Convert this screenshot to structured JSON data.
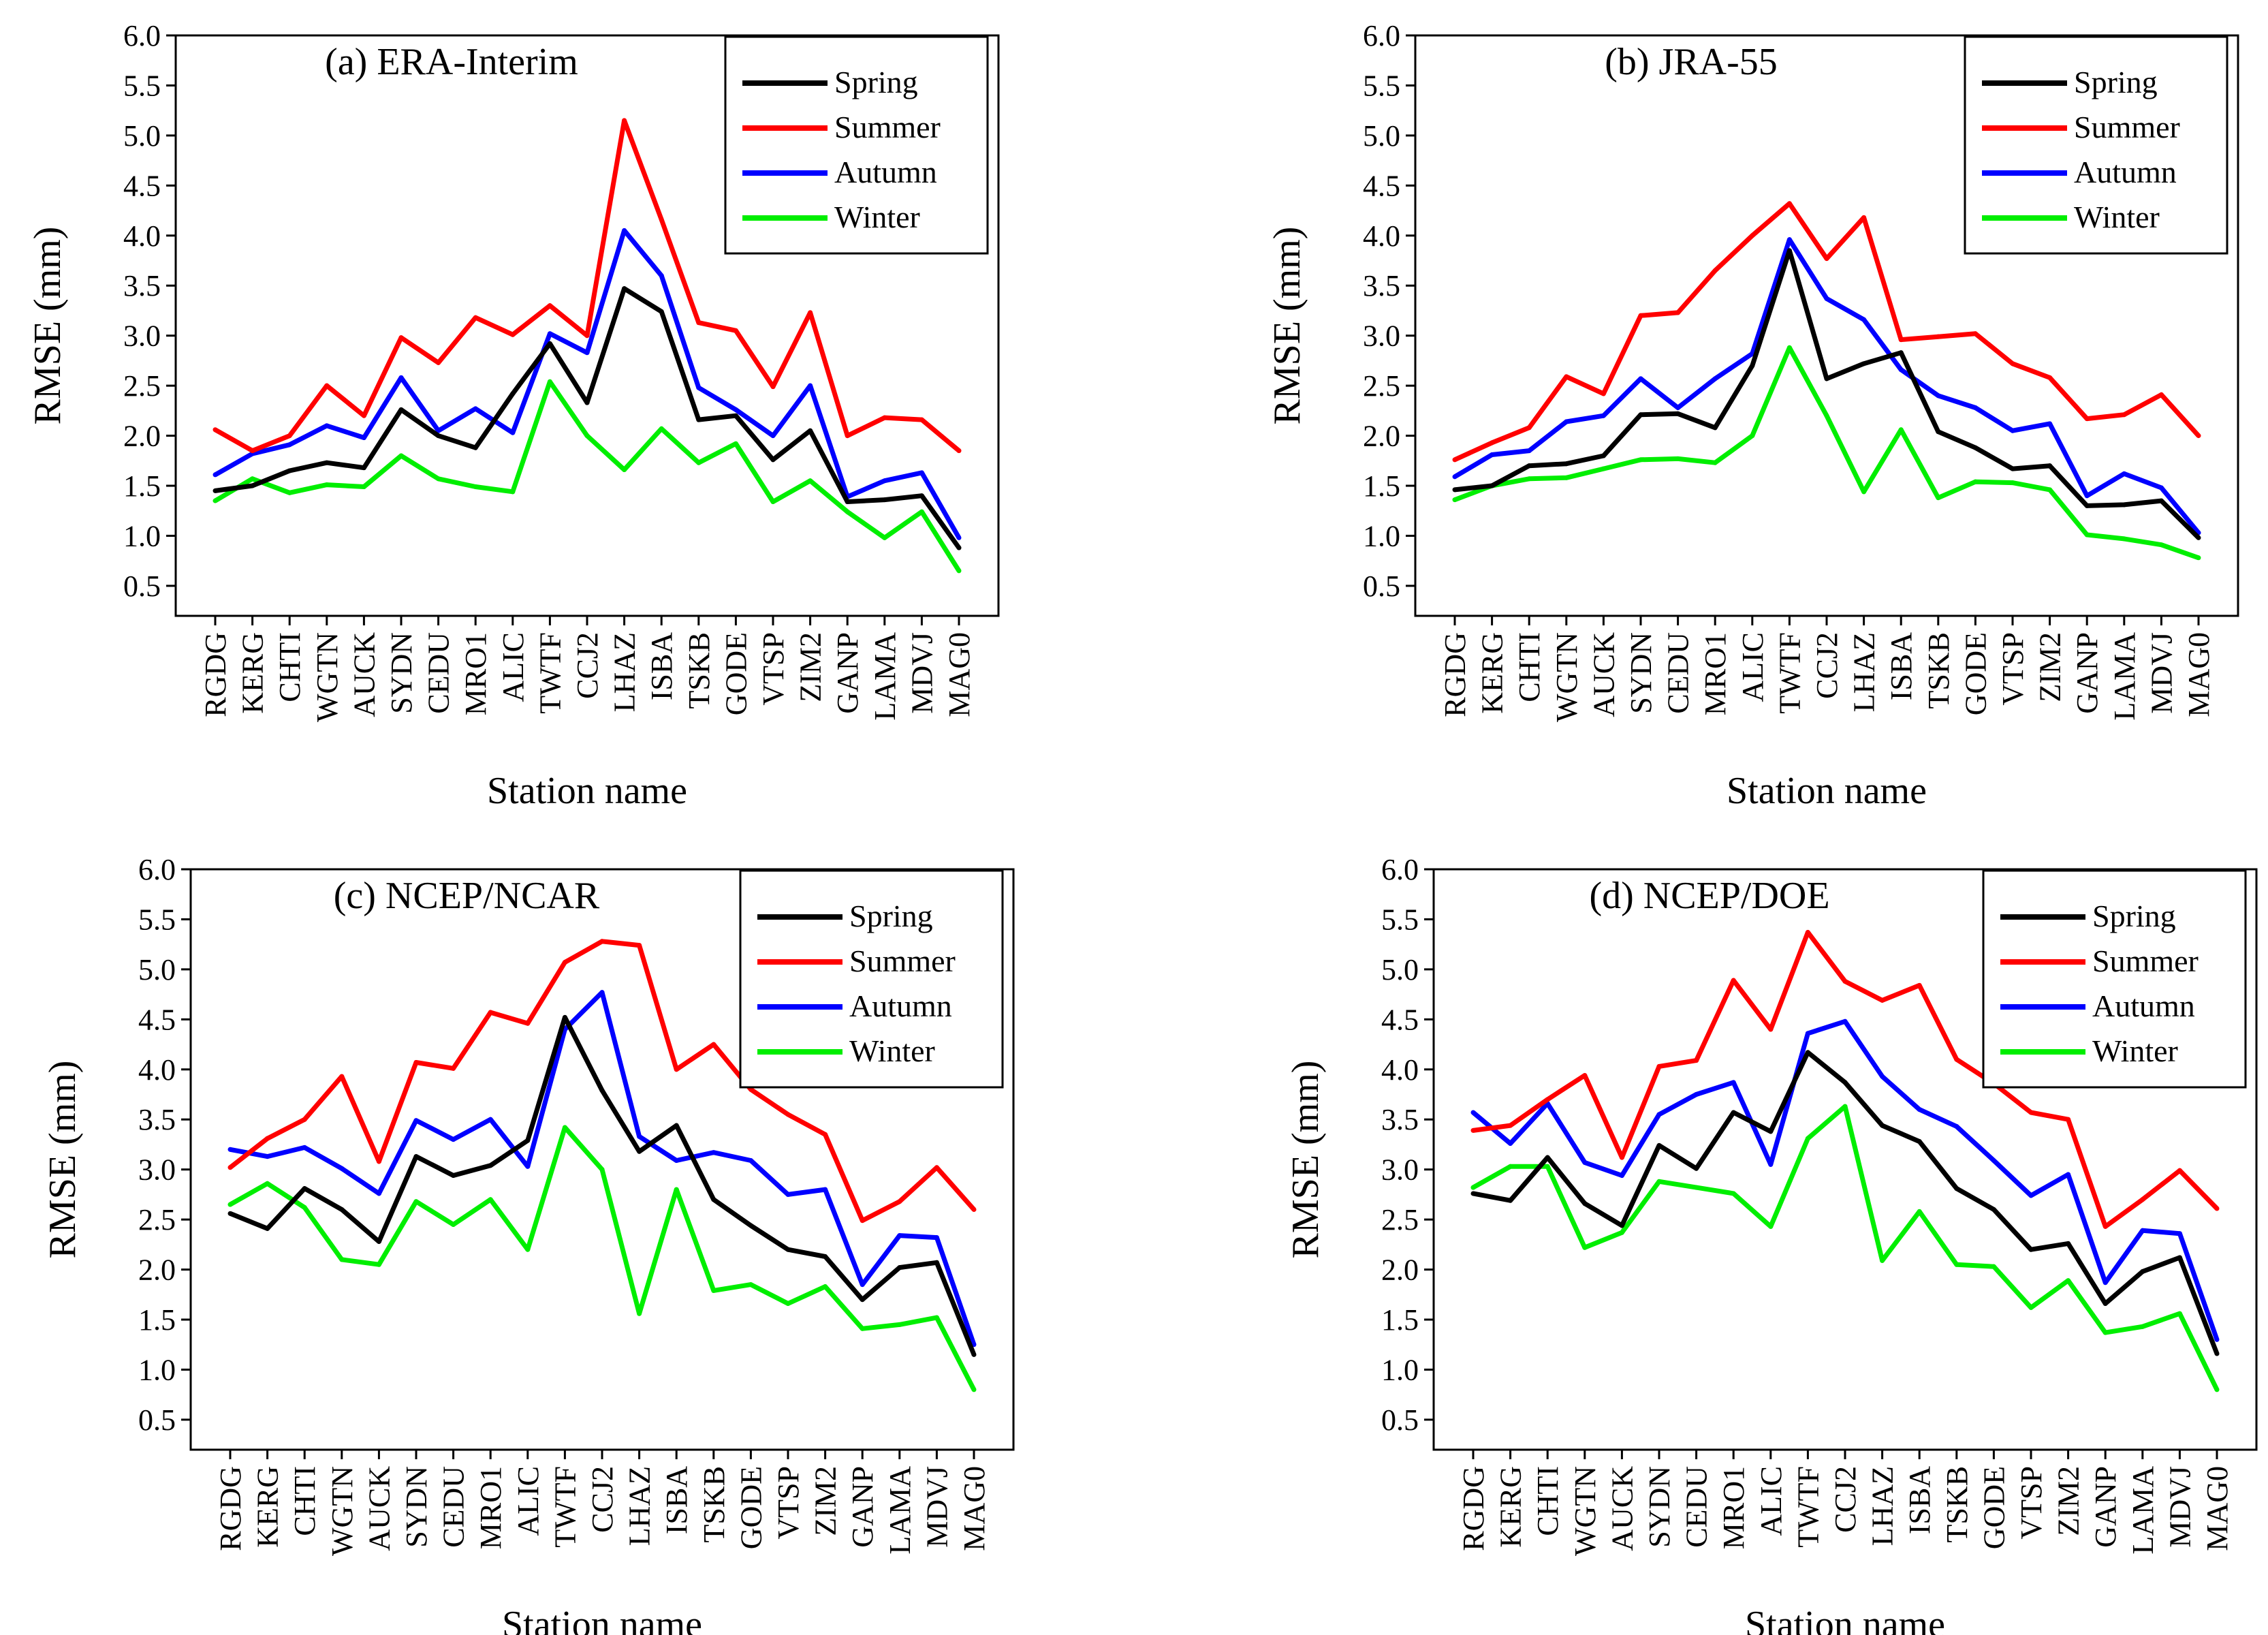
{
  "figure": {
    "xlabel": "Station name",
    "ylabel": "RMSE (mm)",
    "colors": {
      "Spring": "#000000",
      "Summer": "#ff0000",
      "Autumn": "#0000ff",
      "Winter": "#00ee00"
    }
  },
  "chart_data": [
    {
      "type": "line",
      "title": "(a) ERA-Interim",
      "xlabel": "Station name",
      "ylabel": "RMSE (mm)",
      "ylim": [
        0.2,
        6.0
      ],
      "yticks": [
        "0.5",
        "1.0",
        "1.5",
        "2.0",
        "2.5",
        "3.0",
        "3.5",
        "4.0",
        "4.5",
        "5.0",
        "5.5",
        "6.0"
      ],
      "legend_position": "top-right",
      "categories": [
        "RGDG",
        "KERG",
        "CHTI",
        "WGTN",
        "AUCK",
        "SYDN",
        "CEDU",
        "MRO1",
        "ALIC",
        "TWTF",
        "CCJ2",
        "LHAZ",
        "ISBA",
        "TSKB",
        "GODE",
        "VTSP",
        "ZIM2",
        "GANP",
        "LAMA",
        "MDVJ",
        "MAG0"
      ],
      "series": [
        {
          "name": "Spring",
          "color": "#000000",
          "values": [
            1.45,
            1.5,
            1.65,
            1.73,
            1.68,
            2.26,
            2.0,
            1.88,
            2.42,
            2.92,
            2.33,
            3.47,
            3.24,
            2.16,
            2.2,
            1.76,
            2.05,
            1.34,
            1.36,
            1.4,
            0.88
          ]
        },
        {
          "name": "Summer",
          "color": "#ff0000",
          "values": [
            2.06,
            1.85,
            2.0,
            2.5,
            2.2,
            2.98,
            2.73,
            3.18,
            3.01,
            3.3,
            3.0,
            5.15,
            4.16,
            3.13,
            3.05,
            2.49,
            3.23,
            2.0,
            2.18,
            2.16,
            1.85
          ]
        },
        {
          "name": "Autumn",
          "color": "#0000ff",
          "values": [
            1.61,
            1.82,
            1.91,
            2.1,
            1.98,
            2.58,
            2.05,
            2.27,
            2.03,
            3.02,
            2.83,
            4.05,
            3.6,
            2.48,
            2.26,
            2.0,
            2.5,
            1.39,
            1.55,
            1.63,
            0.98
          ]
        },
        {
          "name": "Winter",
          "color": "#00ee00",
          "values": [
            1.35,
            1.57,
            1.43,
            1.51,
            1.49,
            1.8,
            1.57,
            1.49,
            1.44,
            2.54,
            2.0,
            1.66,
            2.07,
            1.73,
            1.92,
            1.34,
            1.55,
            1.24,
            0.98,
            1.24,
            0.65
          ]
        }
      ]
    },
    {
      "type": "line",
      "title": "(b) JRA-55",
      "xlabel": "Station name",
      "ylabel": "RMSE (mm)",
      "ylim": [
        0.2,
        6.0
      ],
      "yticks": [
        "0.5",
        "1.0",
        "1.5",
        "2.0",
        "2.5",
        "3.0",
        "3.5",
        "4.0",
        "4.5",
        "5.0",
        "5.5",
        "6.0"
      ],
      "legend_position": "top-right",
      "categories": [
        "RGDG",
        "KERG",
        "CHTI",
        "WGTN",
        "AUCK",
        "SYDN",
        "CEDU",
        "MRO1",
        "ALIC",
        "TWTF",
        "CCJ2",
        "LHAZ",
        "ISBA",
        "TSKB",
        "GODE",
        "VTSP",
        "ZIM2",
        "GANP",
        "LAMA",
        "MDVJ",
        "MAG0"
      ],
      "series": [
        {
          "name": "Spring",
          "color": "#000000",
          "values": [
            1.46,
            1.5,
            1.7,
            1.72,
            1.8,
            2.21,
            2.22,
            2.08,
            2.7,
            3.85,
            2.57,
            2.72,
            2.83,
            2.04,
            1.88,
            1.67,
            1.7,
            1.3,
            1.31,
            1.35,
            0.98
          ]
        },
        {
          "name": "Summer",
          "color": "#ff0000",
          "values": [
            1.76,
            1.93,
            2.08,
            2.59,
            2.42,
            3.2,
            3.23,
            3.65,
            4.0,
            4.32,
            3.77,
            4.18,
            2.96,
            2.99,
            3.02,
            2.72,
            2.58,
            2.17,
            2.21,
            2.41,
            2.0
          ]
        },
        {
          "name": "Autumn",
          "color": "#0000ff",
          "values": [
            1.59,
            1.81,
            1.85,
            2.14,
            2.2,
            2.57,
            2.28,
            2.57,
            2.82,
            3.96,
            3.37,
            3.16,
            2.66,
            2.4,
            2.28,
            2.05,
            2.12,
            1.4,
            1.62,
            1.48,
            1.03
          ]
        },
        {
          "name": "Winter",
          "color": "#00ee00",
          "values": [
            1.36,
            1.5,
            1.57,
            1.58,
            1.67,
            1.76,
            1.77,
            1.73,
            2.0,
            2.88,
            2.2,
            1.44,
            2.06,
            1.38,
            1.54,
            1.53,
            1.46,
            1.01,
            0.97,
            0.91,
            0.78
          ]
        }
      ]
    },
    {
      "type": "line",
      "title": "(c) NCEP/NCAR",
      "xlabel": "Station name",
      "ylabel": "RMSE (mm)",
      "ylim": [
        0.2,
        6.0
      ],
      "yticks": [
        "0.5",
        "1.0",
        "1.5",
        "2.0",
        "2.5",
        "3.0",
        "3.5",
        "4.0",
        "4.5",
        "5.0",
        "5.5",
        "6.0"
      ],
      "legend_position": "top-right",
      "categories": [
        "RGDG",
        "KERG",
        "CHTI",
        "WGTN",
        "AUCK",
        "SYDN",
        "CEDU",
        "MRO1",
        "ALIC",
        "TWTF",
        "CCJ2",
        "LHAZ",
        "ISBA",
        "TSKB",
        "GODE",
        "VTSP",
        "ZIM2",
        "GANP",
        "LAMA",
        "MDVJ",
        "MAG0"
      ],
      "series": [
        {
          "name": "Spring",
          "color": "#000000",
          "values": [
            2.56,
            2.41,
            2.81,
            2.6,
            2.28,
            3.13,
            2.94,
            3.04,
            3.29,
            4.52,
            3.79,
            3.18,
            3.44,
            2.7,
            2.44,
            2.2,
            2.13,
            1.7,
            2.02,
            2.07,
            1.15
          ]
        },
        {
          "name": "Summer",
          "color": "#ff0000",
          "values": [
            3.02,
            3.31,
            3.5,
            3.93,
            3.08,
            4.07,
            4.01,
            4.57,
            4.46,
            5.07,
            5.28,
            5.24,
            4.0,
            4.25,
            3.8,
            3.55,
            3.35,
            2.49,
            2.68,
            3.02,
            2.6
          ]
        },
        {
          "name": "Autumn",
          "color": "#0000ff",
          "values": [
            3.2,
            3.13,
            3.22,
            3.01,
            2.76,
            3.49,
            3.3,
            3.5,
            3.03,
            4.4,
            4.77,
            3.33,
            3.09,
            3.17,
            3.09,
            2.75,
            2.8,
            1.85,
            2.34,
            2.32,
            1.25
          ]
        },
        {
          "name": "Winter",
          "color": "#00ee00",
          "values": [
            2.65,
            2.86,
            2.62,
            2.1,
            2.05,
            2.68,
            2.45,
            2.7,
            2.2,
            3.42,
            3.0,
            1.56,
            2.8,
            1.79,
            1.85,
            1.66,
            1.83,
            1.41,
            1.45,
            1.52,
            0.8
          ]
        }
      ]
    },
    {
      "type": "line",
      "title": "(d) NCEP/DOE",
      "xlabel": "Station name",
      "ylabel": "RMSE (mm)",
      "ylim": [
        0.2,
        6.0
      ],
      "yticks": [
        "0.5",
        "1.0",
        "1.5",
        "2.0",
        "2.5",
        "3.0",
        "3.5",
        "4.0",
        "4.5",
        "5.0",
        "5.5",
        "6.0"
      ],
      "legend_position": "top-right",
      "categories": [
        "RGDG",
        "KERG",
        "CHTI",
        "WGTN",
        "AUCK",
        "SYDN",
        "CEDU",
        "MRO1",
        "ALIC",
        "TWTF",
        "CCJ2",
        "LHAZ",
        "ISBA",
        "TSKB",
        "GODE",
        "VTSP",
        "ZIM2",
        "GANP",
        "LAMA",
        "MDVJ",
        "MAG0"
      ],
      "series": [
        {
          "name": "Spring",
          "color": "#000000",
          "values": [
            2.76,
            2.69,
            3.12,
            2.66,
            2.44,
            3.24,
            3.01,
            3.57,
            3.38,
            4.17,
            3.87,
            3.44,
            3.28,
            2.81,
            2.6,
            2.2,
            2.26,
            1.66,
            1.98,
            2.12,
            1.16
          ]
        },
        {
          "name": "Summer",
          "color": "#ff0000",
          "values": [
            3.39,
            3.44,
            3.7,
            3.94,
            3.12,
            4.03,
            4.09,
            4.89,
            4.4,
            5.37,
            4.88,
            4.69,
            4.84,
            4.1,
            3.86,
            3.57,
            3.5,
            2.43,
            2.7,
            2.99,
            2.61
          ]
        },
        {
          "name": "Autumn",
          "color": "#0000ff",
          "values": [
            3.57,
            3.26,
            3.66,
            3.07,
            2.94,
            3.55,
            3.75,
            3.87,
            3.05,
            4.36,
            4.48,
            3.93,
            3.6,
            3.43,
            3.09,
            2.74,
            2.95,
            1.87,
            2.39,
            2.36,
            1.3
          ]
        },
        {
          "name": "Winter",
          "color": "#00ee00",
          "values": [
            2.82,
            3.03,
            3.03,
            2.22,
            2.37,
            2.88,
            2.82,
            2.76,
            2.43,
            3.31,
            3.63,
            2.09,
            2.58,
            2.05,
            2.03,
            1.62,
            1.89,
            1.37,
            1.43,
            1.56,
            0.8
          ]
        }
      ]
    }
  ]
}
